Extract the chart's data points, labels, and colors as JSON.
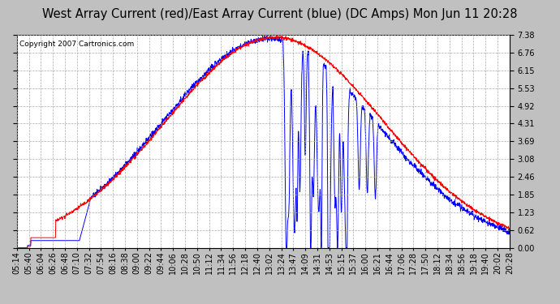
{
  "title": "West Array Current (red)/East Array Current (blue) (DC Amps) Mon Jun 11 20:28",
  "copyright": "Copyright 2007 Cartronics.com",
  "background_color": "#c0c0c0",
  "plot_bg_color": "#ffffff",
  "grid_color": "#aaaaaa",
  "ymin": 0.0,
  "ymax": 7.38,
  "yticks": [
    0.0,
    0.62,
    1.23,
    1.85,
    2.46,
    3.08,
    3.69,
    4.31,
    4.92,
    5.53,
    6.15,
    6.76,
    7.38
  ],
  "x_labels": [
    "05:14",
    "05:40",
    "06:04",
    "06:26",
    "06:48",
    "07:10",
    "07:32",
    "07:54",
    "08:16",
    "08:38",
    "09:00",
    "09:22",
    "09:44",
    "10:06",
    "10:28",
    "10:50",
    "11:12",
    "11:34",
    "11:56",
    "12:18",
    "12:40",
    "13:02",
    "13:24",
    "13:47",
    "14:09",
    "14:31",
    "14:53",
    "15:15",
    "15:37",
    "16:00",
    "16:21",
    "16:44",
    "17:06",
    "17:28",
    "17:50",
    "18:12",
    "18:34",
    "18:56",
    "19:18",
    "19:40",
    "20:02",
    "20:28"
  ],
  "red_color": "#ff0000",
  "blue_color": "#0000ff",
  "title_fontsize": 10.5,
  "tick_fontsize": 7,
  "copyright_fontsize": 6.5
}
